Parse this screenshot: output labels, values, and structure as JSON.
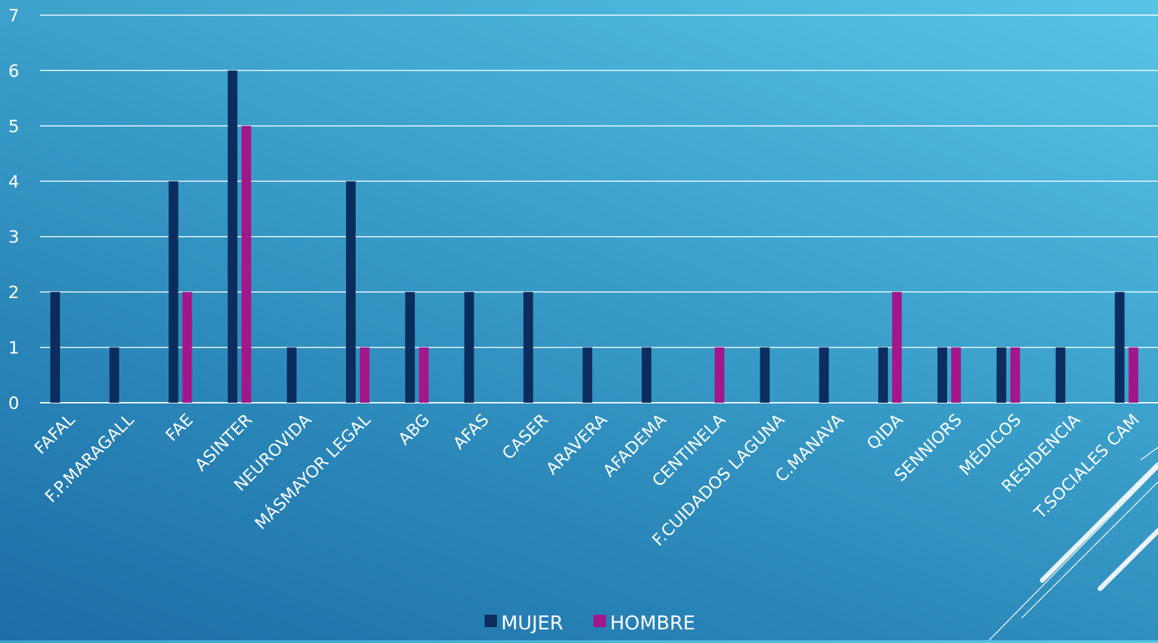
{
  "chart_data": {
    "type": "bar",
    "title": "",
    "xlabel": "",
    "ylabel": "",
    "ylim": [
      0,
      7
    ],
    "yticks": [
      "0",
      "1",
      "2",
      "3",
      "4",
      "5",
      "6",
      "7"
    ],
    "grid": true,
    "legend_position": "bottom",
    "categories": [
      "FAFAL",
      "F.P.MARAGALL",
      "FAE",
      "ASINTER",
      "NEUROVIDA",
      "MÁSMAYOR LEGAL",
      "ABG",
      "AFAS",
      "CASER",
      "ARAVERA",
      "AFADEMA",
      "CENTINELA",
      "F.CUIDADOS LAGUNA",
      "C.MANAVA",
      "QIDA",
      "SENNIORS",
      "MÉDICOS",
      "RESIDENCIA",
      "T.SOCIALES CAM"
    ],
    "series": [
      {
        "name": "MUJER",
        "color": "#0b2d5e",
        "values": [
          2,
          1,
          4,
          6,
          1,
          4,
          2,
          2,
          2,
          1,
          1,
          0,
          1,
          1,
          1,
          1,
          1,
          1,
          2
        ]
      },
      {
        "name": "HOMBRE",
        "color": "#a3178a",
        "values": [
          0,
          0,
          2,
          5,
          0,
          1,
          1,
          0,
          0,
          0,
          0,
          1,
          0,
          0,
          2,
          1,
          1,
          0,
          1
        ]
      }
    ]
  }
}
